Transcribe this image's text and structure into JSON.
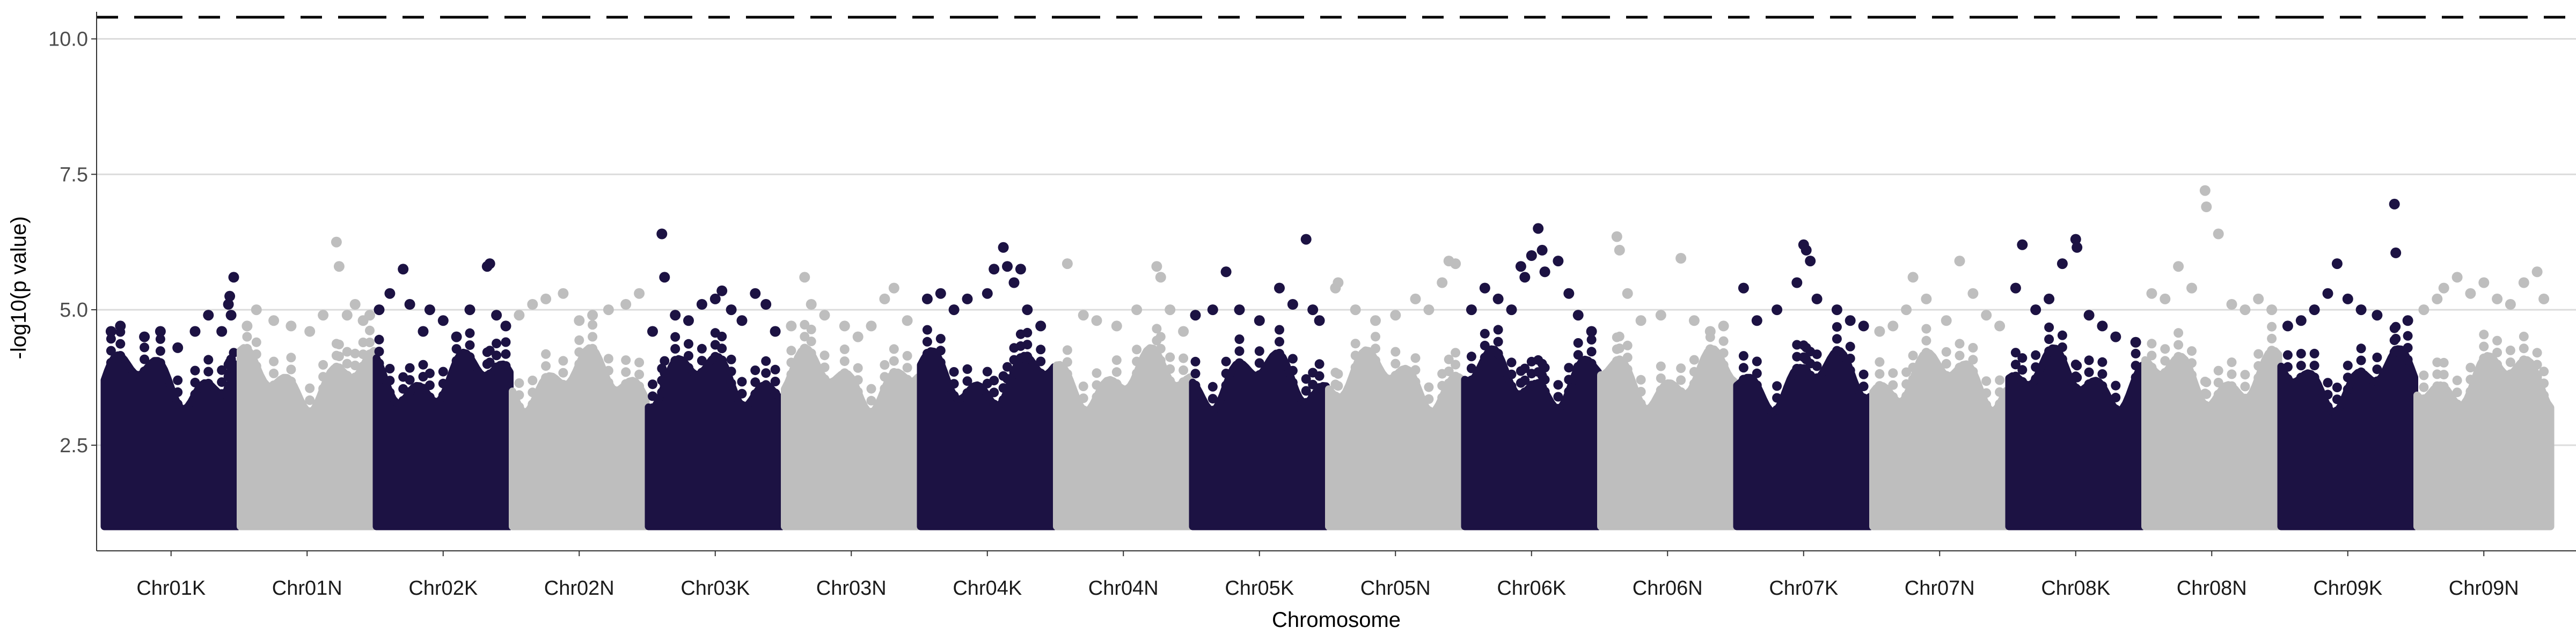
{
  "chart_data": {
    "type": "scatter",
    "title": "",
    "xlabel": "Chromosome",
    "ylabel": "-log10(p value)",
    "ylim": [
      0.55,
      10.5
    ],
    "yticks": [
      2.5,
      5.0,
      7.5,
      10.0
    ],
    "ytick_labels": [
      "2.5",
      "5.0",
      "7.5",
      "10.0"
    ],
    "grid": "horizontal major only",
    "legend": "none",
    "categories": [
      "Chr01K",
      "Chr01N",
      "Chr02K",
      "Chr02N",
      "Chr03K",
      "Chr03N",
      "Chr04K",
      "Chr04N",
      "Chr05K",
      "Chr05N",
      "Chr06K",
      "Chr06N",
      "Chr07K",
      "Chr07N",
      "Chr08K",
      "Chr08N",
      "Chr09K",
      "Chr09N"
    ],
    "colors": [
      "#1c1243",
      "#bebebe"
    ],
    "reference_lines": [
      {
        "y": 10.4,
        "style": "dashed",
        "color": "#000000"
      }
    ],
    "series": [
      {
        "values": [
          [
            0.05,
            4.6
          ],
          [
            0.12,
            4.7
          ],
          [
            0.3,
            4.5
          ],
          [
            0.42,
            4.6
          ],
          [
            0.55,
            4.3
          ],
          [
            0.68,
            4.6
          ],
          [
            0.78,
            4.9
          ],
          [
            0.88,
            4.6
          ],
          [
            0.93,
            5.1
          ],
          [
            0.94,
            5.25
          ],
          [
            0.95,
            4.9
          ],
          [
            0.97,
            5.6
          ]
        ]
      },
      {
        "values": [
          [
            0.05,
            4.7
          ],
          [
            0.12,
            5.0
          ],
          [
            0.25,
            4.8
          ],
          [
            0.38,
            4.7
          ],
          [
            0.52,
            4.6
          ],
          [
            0.62,
            4.9
          ],
          [
            0.72,
            6.25
          ],
          [
            0.74,
            5.8
          ],
          [
            0.8,
            4.9
          ],
          [
            0.86,
            5.1
          ],
          [
            0.92,
            4.8
          ],
          [
            0.97,
            4.9
          ]
        ]
      },
      {
        "values": [
          [
            0.02,
            5.0
          ],
          [
            0.1,
            5.3
          ],
          [
            0.2,
            5.75
          ],
          [
            0.25,
            5.1
          ],
          [
            0.35,
            4.6
          ],
          [
            0.4,
            5.0
          ],
          [
            0.5,
            4.8
          ],
          [
            0.6,
            4.5
          ],
          [
            0.7,
            5.0
          ],
          [
            0.83,
            5.8
          ],
          [
            0.85,
            5.85
          ],
          [
            0.9,
            4.9
          ],
          [
            0.97,
            4.7
          ]
        ]
      },
      {
        "values": [
          [
            0.05,
            4.9
          ],
          [
            0.15,
            5.1
          ],
          [
            0.25,
            5.2
          ],
          [
            0.38,
            5.3
          ],
          [
            0.5,
            4.8
          ],
          [
            0.6,
            4.9
          ],
          [
            0.72,
            5.0
          ],
          [
            0.85,
            5.1
          ],
          [
            0.95,
            5.3
          ]
        ]
      },
      {
        "values": [
          [
            0.03,
            4.6
          ],
          [
            0.1,
            6.4
          ],
          [
            0.12,
            5.6
          ],
          [
            0.2,
            4.9
          ],
          [
            0.3,
            4.8
          ],
          [
            0.4,
            5.1
          ],
          [
            0.5,
            5.2
          ],
          [
            0.55,
            5.35
          ],
          [
            0.62,
            5.0
          ],
          [
            0.7,
            4.8
          ],
          [
            0.8,
            5.3
          ],
          [
            0.88,
            5.1
          ],
          [
            0.95,
            4.6
          ]
        ]
      },
      {
        "values": [
          [
            0.05,
            4.7
          ],
          [
            0.15,
            5.6
          ],
          [
            0.2,
            5.1
          ],
          [
            0.3,
            4.9
          ],
          [
            0.45,
            4.7
          ],
          [
            0.55,
            4.5
          ],
          [
            0.65,
            4.7
          ],
          [
            0.75,
            5.2
          ],
          [
            0.82,
            5.4
          ],
          [
            0.92,
            4.8
          ]
        ]
      },
      {
        "values": [
          [
            0.05,
            5.2
          ],
          [
            0.15,
            5.3
          ],
          [
            0.25,
            5.0
          ],
          [
            0.35,
            5.2
          ],
          [
            0.5,
            5.3
          ],
          [
            0.55,
            5.75
          ],
          [
            0.62,
            6.15
          ],
          [
            0.65,
            5.8
          ],
          [
            0.7,
            5.5
          ],
          [
            0.75,
            5.75
          ],
          [
            0.8,
            5.0
          ],
          [
            0.9,
            4.7
          ]
        ]
      },
      {
        "values": [
          [
            0.08,
            5.85
          ],
          [
            0.2,
            4.9
          ],
          [
            0.3,
            4.8
          ],
          [
            0.45,
            4.7
          ],
          [
            0.6,
            5.0
          ],
          [
            0.75,
            5.8
          ],
          [
            0.78,
            5.6
          ],
          [
            0.85,
            5.0
          ],
          [
            0.95,
            4.6
          ]
        ]
      },
      {
        "values": [
          [
            0.02,
            4.9
          ],
          [
            0.15,
            5.0
          ],
          [
            0.25,
            5.7
          ],
          [
            0.35,
            5.0
          ],
          [
            0.5,
            4.8
          ],
          [
            0.65,
            5.4
          ],
          [
            0.75,
            5.1
          ],
          [
            0.85,
            6.3
          ],
          [
            0.9,
            5.0
          ],
          [
            0.95,
            4.8
          ]
        ]
      },
      {
        "values": [
          [
            0.05,
            5.4
          ],
          [
            0.07,
            5.5
          ],
          [
            0.2,
            5.0
          ],
          [
            0.35,
            4.8
          ],
          [
            0.5,
            4.9
          ],
          [
            0.65,
            5.2
          ],
          [
            0.75,
            5.0
          ],
          [
            0.85,
            5.5
          ],
          [
            0.9,
            5.9
          ],
          [
            0.95,
            5.85
          ]
        ]
      },
      {
        "values": [
          [
            0.05,
            5.0
          ],
          [
            0.15,
            5.4
          ],
          [
            0.25,
            5.2
          ],
          [
            0.35,
            5.0
          ],
          [
            0.42,
            5.8
          ],
          [
            0.45,
            5.6
          ],
          [
            0.5,
            6.0
          ],
          [
            0.55,
            6.5
          ],
          [
            0.58,
            6.1
          ],
          [
            0.6,
            5.7
          ],
          [
            0.7,
            5.9
          ],
          [
            0.78,
            5.3
          ],
          [
            0.85,
            4.9
          ],
          [
            0.95,
            4.6
          ]
        ]
      },
      {
        "values": [
          [
            0.12,
            6.35
          ],
          [
            0.14,
            6.1
          ],
          [
            0.2,
            5.3
          ],
          [
            0.3,
            4.8
          ],
          [
            0.45,
            4.9
          ],
          [
            0.6,
            5.95
          ],
          [
            0.7,
            4.8
          ],
          [
            0.82,
            4.6
          ],
          [
            0.92,
            4.7
          ]
        ]
      },
      {
        "values": [
          [
            0.05,
            5.4
          ],
          [
            0.15,
            4.8
          ],
          [
            0.3,
            5.0
          ],
          [
            0.45,
            5.5
          ],
          [
            0.5,
            6.2
          ],
          [
            0.52,
            6.1
          ],
          [
            0.55,
            5.9
          ],
          [
            0.6,
            5.2
          ],
          [
            0.75,
            5.0
          ],
          [
            0.85,
            4.8
          ],
          [
            0.95,
            4.7
          ]
        ]
      },
      {
        "values": [
          [
            0.05,
            4.6
          ],
          [
            0.15,
            4.7
          ],
          [
            0.25,
            5.0
          ],
          [
            0.3,
            5.6
          ],
          [
            0.4,
            5.2
          ],
          [
            0.55,
            4.8
          ],
          [
            0.65,
            5.9
          ],
          [
            0.75,
            5.3
          ],
          [
            0.85,
            4.9
          ],
          [
            0.95,
            4.7
          ]
        ]
      },
      {
        "values": [
          [
            0.05,
            5.4
          ],
          [
            0.1,
            6.2
          ],
          [
            0.2,
            5.0
          ],
          [
            0.3,
            5.2
          ],
          [
            0.4,
            5.85
          ],
          [
            0.5,
            6.3
          ],
          [
            0.51,
            6.15
          ],
          [
            0.6,
            4.9
          ],
          [
            0.7,
            4.7
          ],
          [
            0.8,
            4.5
          ],
          [
            0.95,
            4.4
          ]
        ]
      },
      {
        "values": [
          [
            0.05,
            5.3
          ],
          [
            0.15,
            5.2
          ],
          [
            0.25,
            5.8
          ],
          [
            0.35,
            5.4
          ],
          [
            0.45,
            7.2
          ],
          [
            0.46,
            6.9
          ],
          [
            0.55,
            6.4
          ],
          [
            0.65,
            5.1
          ],
          [
            0.75,
            5.0
          ],
          [
            0.85,
            5.2
          ],
          [
            0.95,
            5.0
          ]
        ]
      },
      {
        "values": [
          [
            0.05,
            4.7
          ],
          [
            0.15,
            4.8
          ],
          [
            0.25,
            5.0
          ],
          [
            0.35,
            5.3
          ],
          [
            0.42,
            5.85
          ],
          [
            0.5,
            5.2
          ],
          [
            0.6,
            5.0
          ],
          [
            0.72,
            4.9
          ],
          [
            0.85,
            6.95
          ],
          [
            0.86,
            6.05
          ],
          [
            0.95,
            4.8
          ]
        ]
      },
      {
        "values": [
          [
            0.05,
            5.0
          ],
          [
            0.15,
            5.2
          ],
          [
            0.2,
            5.4
          ],
          [
            0.3,
            5.6
          ],
          [
            0.4,
            5.3
          ],
          [
            0.5,
            5.5
          ],
          [
            0.6,
            5.2
          ],
          [
            0.7,
            5.1
          ],
          [
            0.8,
            5.5
          ],
          [
            0.9,
            5.7
          ],
          [
            0.95,
            5.2
          ]
        ]
      }
    ]
  }
}
